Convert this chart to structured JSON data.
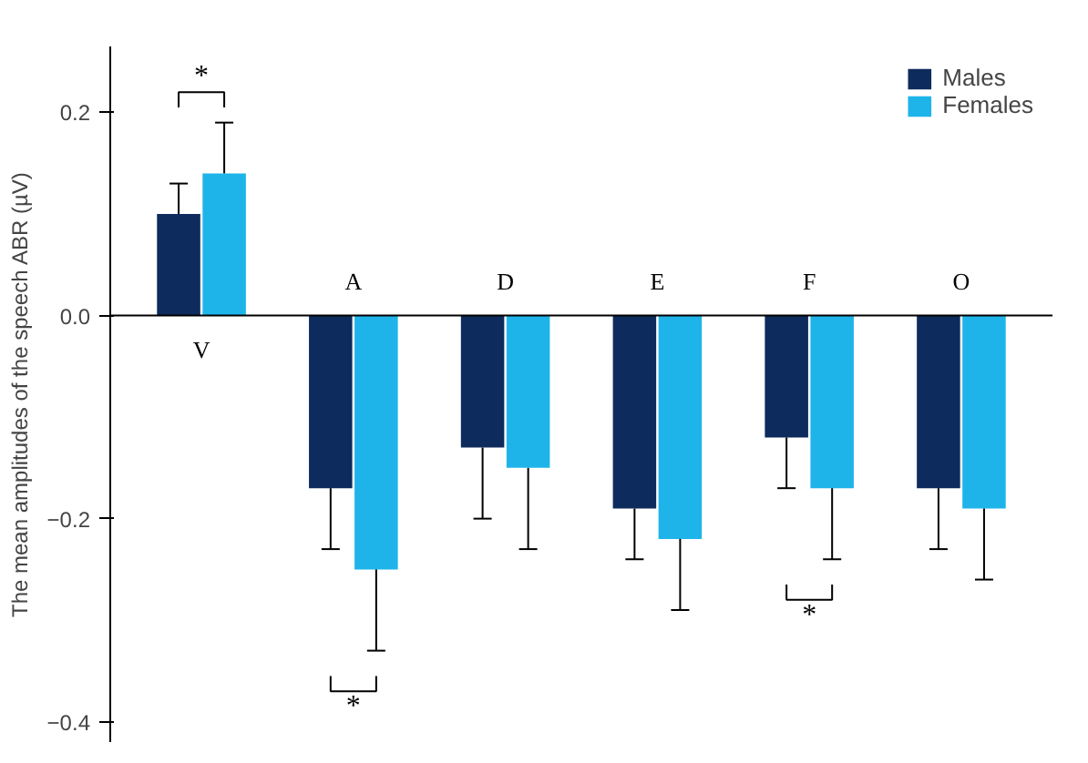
{
  "chart_data": {
    "type": "bar",
    "ylabel": "The mean amplitudes of the speech ABR (µV)",
    "categories": [
      "V",
      "A",
      "D",
      "E",
      "F",
      "O"
    ],
    "series": [
      {
        "name": "Males",
        "color": "#0d2b5c",
        "values": [
          0.1,
          -0.17,
          -0.13,
          -0.19,
          -0.12,
          -0.17
        ],
        "errors": [
          [
            0.1,
            0.13
          ],
          [
            -0.23,
            -0.17
          ],
          [
            -0.2,
            -0.13
          ],
          [
            -0.24,
            -0.19
          ],
          [
            -0.17,
            -0.12
          ],
          [
            -0.23,
            -0.17
          ]
        ]
      },
      {
        "name": "Females",
        "color": "#1eb4ea",
        "values": [
          0.14,
          -0.25,
          -0.15,
          -0.22,
          -0.17,
          -0.19
        ],
        "errors": [
          [
            0.14,
            0.19
          ],
          [
            -0.33,
            -0.25
          ],
          [
            -0.23,
            -0.15
          ],
          [
            -0.29,
            -0.22
          ],
          [
            -0.24,
            -0.17
          ],
          [
            -0.26,
            -0.19
          ]
        ]
      }
    ],
    "ylim": [
      -0.42,
      0.265
    ],
    "yticks": [
      {
        "value": 0.2,
        "label": "0.2"
      },
      {
        "value": 0,
        "label": "0.0"
      },
      {
        "value": -0.2,
        "label": "−0.2"
      },
      {
        "value": -0.4,
        "label": "−0.4"
      }
    ],
    "annotations": [
      "*",
      "*",
      "*"
    ],
    "legend": "top right",
    "grid": false
  }
}
